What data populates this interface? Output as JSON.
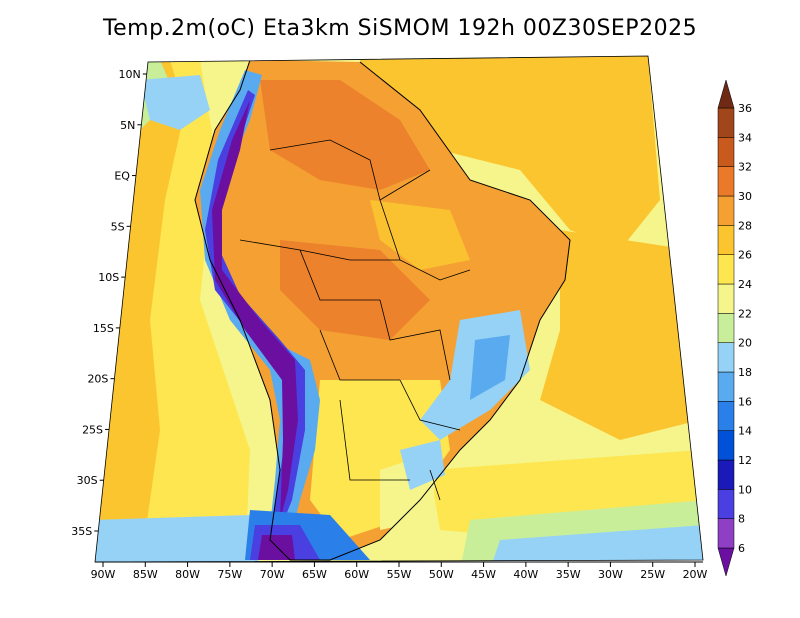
{
  "title": "Temp.2m(oC) Eta3km SiSMOM 192h 00Z30SEP2025",
  "colorbar": {
    "labels": [
      "6",
      "8",
      "10",
      "12",
      "14",
      "16",
      "18",
      "20",
      "22",
      "24",
      "26",
      "28",
      "30",
      "32",
      "34",
      "36"
    ],
    "colors": [
      "#6b0fa0",
      "#8e3fc4",
      "#4a3fe0",
      "#1a1ab8",
      "#0050d8",
      "#2b7fe8",
      "#5aaaf0",
      "#96d2f5",
      "#c8ee9a",
      "#f5f58c",
      "#fde650",
      "#fbc530",
      "#f5a032",
      "#ea7a2a",
      "#c85a1e",
      "#a0461a",
      "#6e2a14"
    ]
  },
  "axes": {
    "x_labels": [
      "90W",
      "85W",
      "80W",
      "75W",
      "70W",
      "65W",
      "60W",
      "55W",
      "50W",
      "45W",
      "40W",
      "35W",
      "30W",
      "25W",
      "20W"
    ],
    "y_labels": [
      "10N",
      "5N",
      "EQ",
      "5S",
      "10S",
      "15S",
      "20S",
      "25S",
      "30S",
      "35S"
    ]
  },
  "field_colors": {
    "ocean_warm": "#fbc530",
    "ocean_mild": "#fde650",
    "ocean_cool": "#f5f58c",
    "land_hot": "#f5a032",
    "land_very_hot": "#ea7a2a",
    "andes": "#6b0fa0",
    "highland": "#5aaaf0",
    "south_cold": "#2b7fe8"
  }
}
